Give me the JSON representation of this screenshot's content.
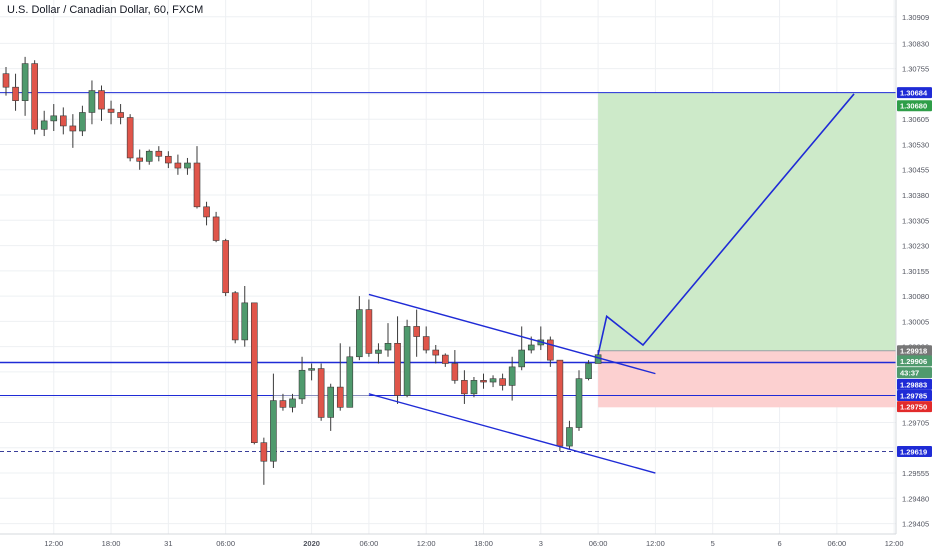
{
  "chart_data": {
    "type": "candlestick",
    "title": "U.S. Dollar / Canadian Dollar, 60, FXCM",
    "colors": {
      "up": "#4f9a6d",
      "down": "#e0554a",
      "trendline": "#1f2bd6",
      "profit_zone": "#cdeac9",
      "stop_zone": "#fcd0d0",
      "grid": "#eef0f3",
      "axis_text": "#50535e"
    },
    "ylim": [
      1.2938,
      1.30935
    ],
    "y_ticks": [
      "1.30909",
      "1.30830",
      "1.30755",
      "1.30680",
      "1.30605",
      "1.30530",
      "1.30455",
      "1.30380",
      "1.30305",
      "1.30230",
      "1.30155",
      "1.30080",
      "1.30005",
      "1.29930",
      "1.29855",
      "1.29780",
      "1.29705",
      "1.29630",
      "1.29555",
      "1.29480",
      "1.29405"
    ],
    "x_ticks": [
      {
        "label": "12:00",
        "bar": 5
      },
      {
        "label": "18:00",
        "bar": 11
      },
      {
        "label": "31",
        "bar": 17
      },
      {
        "label": "06:00",
        "bar": 23
      },
      {
        "label": "2020",
        "bar": 32
      },
      {
        "label": "06:00",
        "bar": 38
      },
      {
        "label": "12:00",
        "bar": 44
      },
      {
        "label": "18:00",
        "bar": 50
      },
      {
        "label": "3",
        "bar": 56
      },
      {
        "label": "06:00",
        "bar": 62
      },
      {
        "label": "12:00",
        "bar": 68
      },
      {
        "label": "5",
        "bar": 74
      },
      {
        "label": "6",
        "bar": 81
      },
      {
        "label": "06:00",
        "bar": 87
      },
      {
        "label": "12:00",
        "bar": 93
      }
    ],
    "candles": [
      {
        "o": 1.3074,
        "h": 1.3076,
        "l": 1.30675,
        "c": 1.307
      },
      {
        "o": 1.307,
        "h": 1.3074,
        "l": 1.3063,
        "c": 1.3066
      },
      {
        "o": 1.3066,
        "h": 1.3079,
        "l": 1.30615,
        "c": 1.3077
      },
      {
        "o": 1.3077,
        "h": 1.3078,
        "l": 1.3056,
        "c": 1.30575
      },
      {
        "o": 1.30575,
        "h": 1.3063,
        "l": 1.30555,
        "c": 1.306
      },
      {
        "o": 1.306,
        "h": 1.3065,
        "l": 1.3057,
        "c": 1.30615
      },
      {
        "o": 1.30615,
        "h": 1.3064,
        "l": 1.3056,
        "c": 1.30585
      },
      {
        "o": 1.30585,
        "h": 1.3062,
        "l": 1.3052,
        "c": 1.3057
      },
      {
        "o": 1.3057,
        "h": 1.30645,
        "l": 1.30555,
        "c": 1.30625
      },
      {
        "o": 1.30625,
        "h": 1.3072,
        "l": 1.3059,
        "c": 1.3069
      },
      {
        "o": 1.3069,
        "h": 1.30705,
        "l": 1.306,
        "c": 1.30635
      },
      {
        "o": 1.30635,
        "h": 1.3066,
        "l": 1.3059,
        "c": 1.30625
      },
      {
        "o": 1.30625,
        "h": 1.3065,
        "l": 1.3059,
        "c": 1.3061
      },
      {
        "o": 1.3061,
        "h": 1.3062,
        "l": 1.3048,
        "c": 1.3049
      },
      {
        "o": 1.3049,
        "h": 1.30515,
        "l": 1.30455,
        "c": 1.3048
      },
      {
        "o": 1.3048,
        "h": 1.30515,
        "l": 1.3047,
        "c": 1.3051
      },
      {
        "o": 1.3051,
        "h": 1.30525,
        "l": 1.3048,
        "c": 1.30495
      },
      {
        "o": 1.30495,
        "h": 1.3051,
        "l": 1.3046,
        "c": 1.30475
      },
      {
        "o": 1.30475,
        "h": 1.305,
        "l": 1.3044,
        "c": 1.3046
      },
      {
        "o": 1.3046,
        "h": 1.3049,
        "l": 1.3044,
        "c": 1.30475
      },
      {
        "o": 1.30475,
        "h": 1.30525,
        "l": 1.3034,
        "c": 1.30345
      },
      {
        "o": 1.30345,
        "h": 1.3036,
        "l": 1.3029,
        "c": 1.30315
      },
      {
        "o": 1.30315,
        "h": 1.3033,
        "l": 1.3024,
        "c": 1.30245
      },
      {
        "o": 1.30245,
        "h": 1.3025,
        "l": 1.3008,
        "c": 1.3009
      },
      {
        "o": 1.3009,
        "h": 1.30095,
        "l": 1.2994,
        "c": 1.2995
      },
      {
        "o": 1.2995,
        "h": 1.3011,
        "l": 1.2993,
        "c": 1.3006
      },
      {
        "o": 1.3006,
        "h": 1.3006,
        "l": 1.2964,
        "c": 1.29645
      },
      {
        "o": 1.29645,
        "h": 1.2966,
        "l": 1.2952,
        "c": 1.2959
      },
      {
        "o": 1.2959,
        "h": 1.2985,
        "l": 1.2957,
        "c": 1.2977
      },
      {
        "o": 1.2977,
        "h": 1.2979,
        "l": 1.2974,
        "c": 1.2975
      },
      {
        "o": 1.2975,
        "h": 1.2979,
        "l": 1.29735,
        "c": 1.29775
      },
      {
        "o": 1.29775,
        "h": 1.299,
        "l": 1.2976,
        "c": 1.2986
      },
      {
        "o": 1.2986,
        "h": 1.2988,
        "l": 1.2983,
        "c": 1.29865
      },
      {
        "o": 1.29865,
        "h": 1.2988,
        "l": 1.2971,
        "c": 1.2972
      },
      {
        "o": 1.2972,
        "h": 1.2982,
        "l": 1.2968,
        "c": 1.2981
      },
      {
        "o": 1.2981,
        "h": 1.2994,
        "l": 1.2974,
        "c": 1.2975
      },
      {
        "o": 1.2975,
        "h": 1.2993,
        "l": 1.2975,
        "c": 1.299
      },
      {
        "o": 1.299,
        "h": 1.3008,
        "l": 1.2989,
        "c": 1.3004
      },
      {
        "o": 1.3004,
        "h": 1.3007,
        "l": 1.299,
        "c": 1.2991
      },
      {
        "o": 1.2991,
        "h": 1.2994,
        "l": 1.2988,
        "c": 1.2992
      },
      {
        "o": 1.2992,
        "h": 1.3,
        "l": 1.299,
        "c": 1.2994
      },
      {
        "o": 1.2994,
        "h": 1.3002,
        "l": 1.2976,
        "c": 1.29785
      },
      {
        "o": 1.29785,
        "h": 1.3001,
        "l": 1.2978,
        "c": 1.2999
      },
      {
        "o": 1.2999,
        "h": 1.3004,
        "l": 1.299,
        "c": 1.2996
      },
      {
        "o": 1.2996,
        "h": 1.2999,
        "l": 1.2991,
        "c": 1.2992
      },
      {
        "o": 1.2992,
        "h": 1.29935,
        "l": 1.2988,
        "c": 1.29905
      },
      {
        "o": 1.29905,
        "h": 1.2991,
        "l": 1.2987,
        "c": 1.2988
      },
      {
        "o": 1.2988,
        "h": 1.2992,
        "l": 1.2982,
        "c": 1.2983
      },
      {
        "o": 1.2983,
        "h": 1.2986,
        "l": 1.2976,
        "c": 1.2979
      },
      {
        "o": 1.2979,
        "h": 1.2984,
        "l": 1.2978,
        "c": 1.2983
      },
      {
        "o": 1.2983,
        "h": 1.2985,
        "l": 1.29805,
        "c": 1.29825
      },
      {
        "o": 1.29825,
        "h": 1.29845,
        "l": 1.2981,
        "c": 1.29835
      },
      {
        "o": 1.29835,
        "h": 1.2985,
        "l": 1.298,
        "c": 1.29815
      },
      {
        "o": 1.29815,
        "h": 1.299,
        "l": 1.2977,
        "c": 1.2987
      },
      {
        "o": 1.2987,
        "h": 1.2999,
        "l": 1.2986,
        "c": 1.2992
      },
      {
        "o": 1.2992,
        "h": 1.2996,
        "l": 1.2991,
        "c": 1.29935
      },
      {
        "o": 1.29935,
        "h": 1.2999,
        "l": 1.2992,
        "c": 1.2995
      },
      {
        "o": 1.2995,
        "h": 1.2996,
        "l": 1.2987,
        "c": 1.2989
      },
      {
        "o": 1.2989,
        "h": 1.2989,
        "l": 1.2962,
        "c": 1.29635
      },
      {
        "o": 1.29635,
        "h": 1.2971,
        "l": 1.29625,
        "c": 1.2969
      },
      {
        "o": 1.2969,
        "h": 1.2986,
        "l": 1.2968,
        "c": 1.29835
      },
      {
        "o": 1.29835,
        "h": 1.2989,
        "l": 1.2983,
        "c": 1.2988
      },
      {
        "o": 1.2988,
        "h": 1.2992,
        "l": 1.2988,
        "c": 1.29906
      }
    ],
    "horizontal_lines": [
      {
        "price": 1.30684,
        "style": "solid"
      },
      {
        "price": 1.29883,
        "style": "solid",
        "thick": true
      },
      {
        "price": 1.29785,
        "style": "solid"
      },
      {
        "price": 1.29619,
        "style": "dashed"
      }
    ],
    "channel": {
      "upper": {
        "from": {
          "bar": 38,
          "price": 1.30085
        },
        "to": {
          "bar": 68,
          "price": 1.2985
        }
      },
      "lower": {
        "from": {
          "bar": 38,
          "price": 1.2979
        },
        "to": {
          "bar": 68,
          "price": 1.29555
        }
      },
      "range_box": {
        "from_bar": 28,
        "to_bar": 38,
        "price": 1.29785
      }
    },
    "projection": [
      {
        "bar": 62.0,
        "price": 1.29906
      },
      {
        "bar": 62.9,
        "price": 1.3002
      },
      {
        "bar": 66.7,
        "price": 1.29935
      },
      {
        "bar": 88.8,
        "price": 1.3068
      }
    ],
    "position": {
      "start_bar": 62.0,
      "end_bar": 96.5,
      "entry": 1.29918,
      "target": 1.30684,
      "stop": 1.2975
    },
    "price_labels": [
      {
        "text": "1.30684",
        "price": 1.30684,
        "bg": "#1f2bd6"
      },
      {
        "text": "1.30680",
        "price": 1.30645,
        "bg": "#2e9e48"
      },
      {
        "text": "1.29918",
        "price": 1.29918,
        "bg": "#777777"
      },
      {
        "text": "1.29906",
        "price": 1.29888,
        "bg": "#4f9a6d"
      },
      {
        "text": "43:37",
        "price": 1.29853,
        "bg": "#4f9a6d"
      },
      {
        "text": "1.29883",
        "price": 1.29818,
        "bg": "#1f2bd6"
      },
      {
        "text": "1.29785",
        "price": 1.29785,
        "bg": "#1f2bd6"
      },
      {
        "text": "1.29750",
        "price": 1.29752,
        "bg": "#e22b2b"
      },
      {
        "text": "1.29619",
        "price": 1.29619,
        "bg": "#1f2bd6"
      }
    ]
  }
}
